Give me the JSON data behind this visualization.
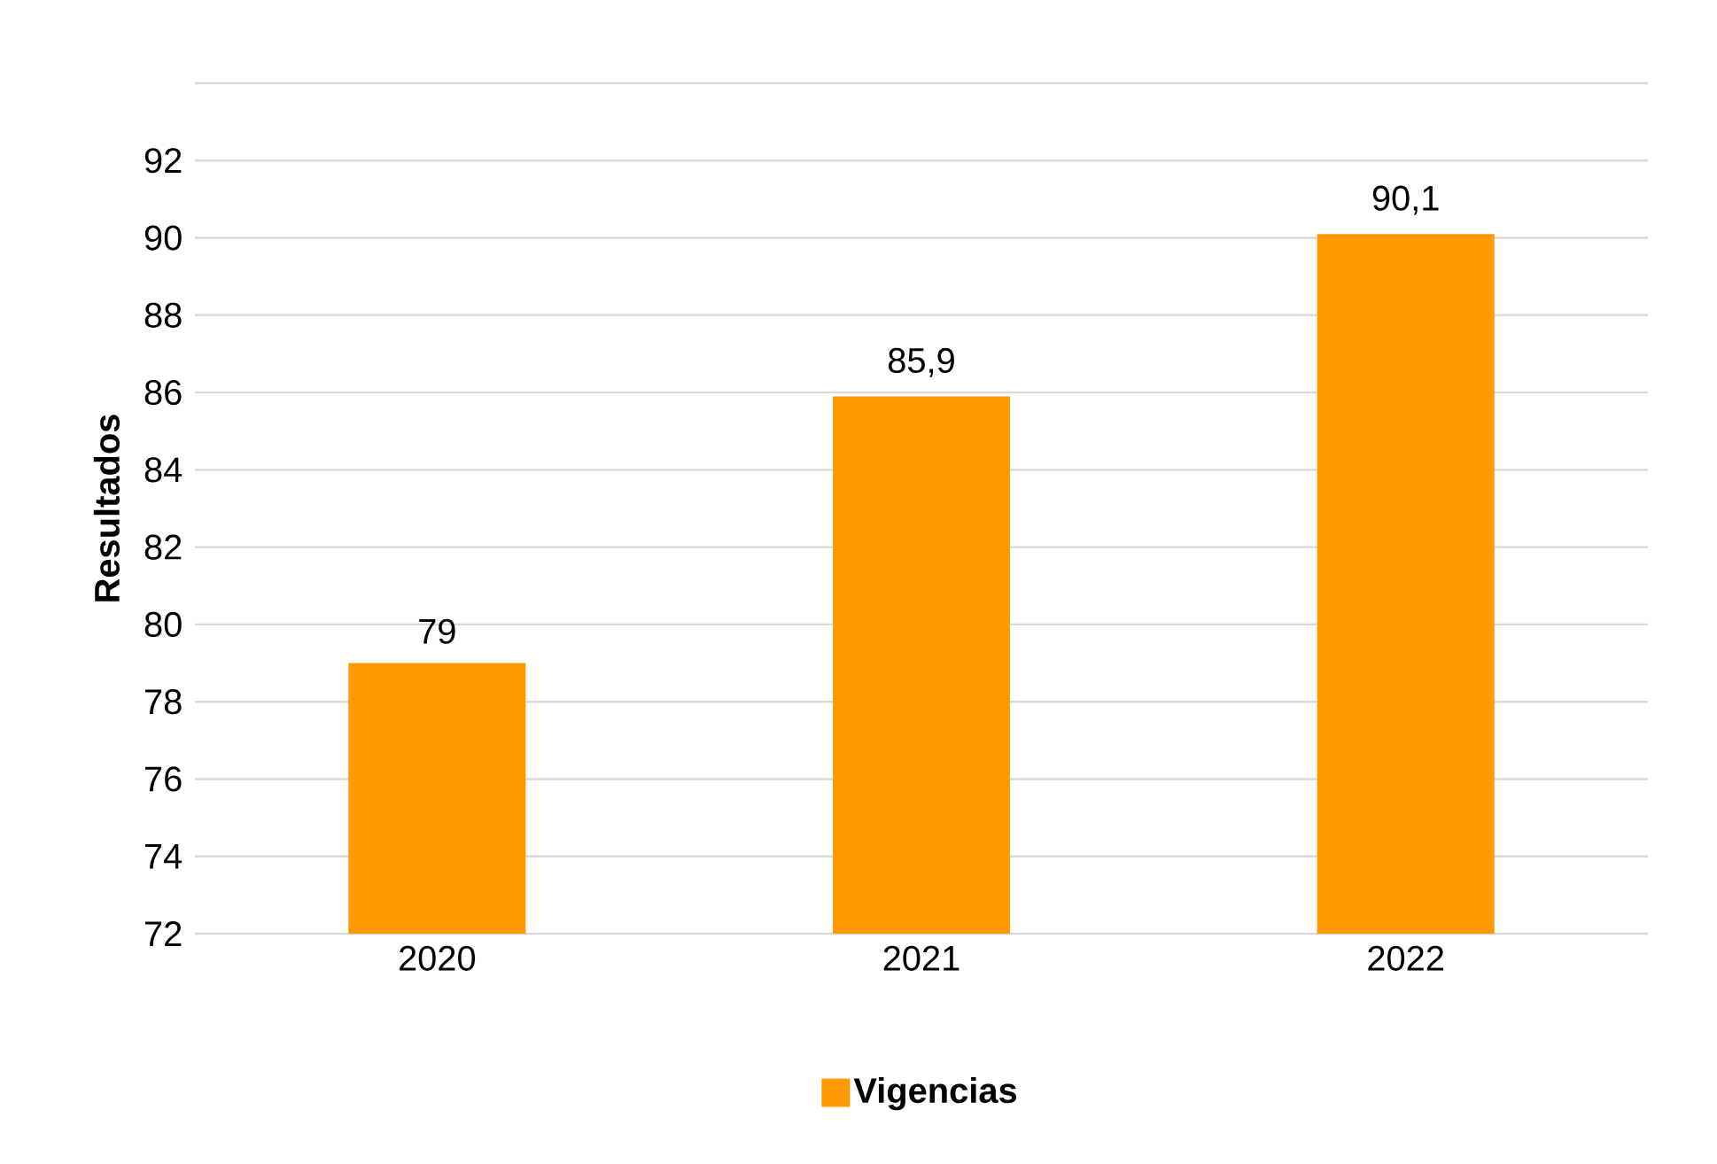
{
  "chart_data": {
    "type": "bar",
    "ylabel": "Resultados",
    "categories": [
      "2020",
      "2021",
      "2022"
    ],
    "series": [
      {
        "name": "Vigencias",
        "color": "#ff9900",
        "values": [
          79,
          85.9,
          90.1
        ],
        "value_labels": [
          "79",
          "85,9",
          "90,1"
        ]
      }
    ],
    "ylim": [
      72,
      94
    ],
    "yticks": [
      72,
      74,
      76,
      78,
      80,
      82,
      84,
      86,
      88,
      90,
      92,
      {
        "value": 94,
        "label": null
      }
    ],
    "grid": "y",
    "legend": "bottom"
  }
}
